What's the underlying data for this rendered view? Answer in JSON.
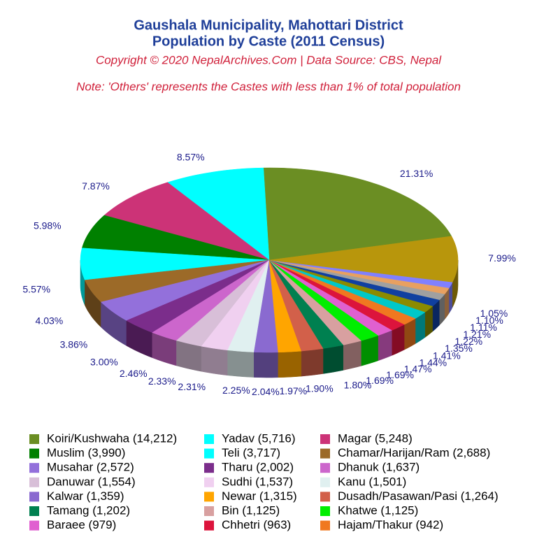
{
  "chart_data": {
    "type": "pie3d",
    "title": "Gaushala Municipality, Mahottari District",
    "subtitle": "Population by Caste (2011 Census)",
    "copyright": "Copyright © 2020 NepalArchives.Com | Data Source: CBS, Nepal",
    "note": "Note: 'Others' represents the Castes with less than 1% of total population",
    "categories": [
      "Koiri/Kushwaha (14,212)",
      "Yadav (5,716)",
      "Magar (5,248)",
      "Muslim (3,990)",
      "Teli (3,717)",
      "Chamar/Harijan/Ram (2,688)",
      "Musahar (2,572)",
      "Tharu (2,002)",
      "Dhanuk (1,637)",
      "Danuwar (1,554)",
      "Sudhi (1,537)",
      "Kanu (1,501)",
      "Kalwar (1,359)",
      "Newar (1,315)",
      "Dusadh/Pasawan/Pasi (1,264)",
      "Tamang (1,202)",
      "Bin (1,125)",
      "Khatwe (1,125)",
      "Baraee (979)",
      "Chhetri (963)",
      "Hajam/Thakur (942)",
      null,
      null,
      null,
      null,
      null,
      null,
      null
    ],
    "values": [
      21.31,
      8.57,
      7.87,
      5.98,
      5.57,
      4.03,
      3.86,
      3.0,
      2.46,
      2.33,
      2.31,
      2.25,
      2.04,
      1.97,
      1.9,
      1.8,
      1.69,
      1.69,
      1.47,
      1.44,
      1.41,
      1.35,
      1.22,
      1.21,
      1.11,
      1.1,
      1.05,
      7.99
    ],
    "value_labels": [
      "21.31%",
      "8.57%",
      "7.87%",
      "5.98%",
      "5.57%",
      "4.03%",
      "3.86%",
      "3.00%",
      "2.46%",
      "2.33%",
      "2.31%",
      "2.25%",
      "2.04%",
      "1.97%",
      "1.90%",
      "1.80%",
      "1.69%",
      "1.69%",
      "1.47%",
      "1.44%",
      "1.41%",
      "1.35%",
      "1.22%",
      "1.21%",
      "1.11%",
      "1.10%",
      "1.05%",
      "7.99%"
    ],
    "colors": [
      "#6b8e23",
      "#00ffff",
      "#cc3377",
      "#008000",
      "#00ffff",
      "#9c6a28",
      "#9370db",
      "#7b2d8b",
      "#cc66cc",
      "#d8bfd8",
      "#f0d0f0",
      "#e0f0f0",
      "#8a6ad0",
      "#ffa500",
      "#d2604a",
      "#008050",
      "#d8a0a0",
      "#00ee00",
      "#e060d0",
      "#dc143c",
      "#f07820",
      "#00c8c8",
      "#8b8b00",
      "#1040a0",
      "#a0a0a0",
      "#e8a060",
      "#8080ff",
      "#b8960c"
    ]
  }
}
